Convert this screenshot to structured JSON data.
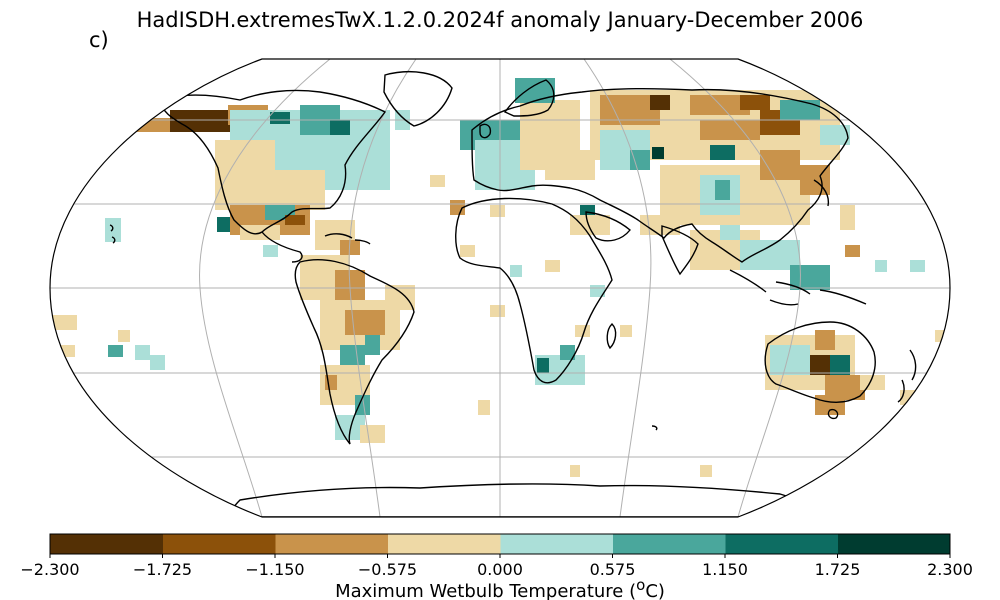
{
  "title": "HadISDH.extremesTwX.1.2.0.2024f anomaly January-December 2006",
  "panel_label": "c)",
  "colorbar": {
    "label": "Maximum Wetbulb Temperature (",
    "label_sup": "o",
    "label_unit": "C)",
    "ticks": [
      "−2.300",
      "−1.725",
      "−1.150",
      "−0.575",
      "0.000",
      "0.575",
      "1.150",
      "1.725",
      "2.300"
    ],
    "colors": [
      "#543005",
      "#8c510a",
      "#c9934b",
      "#eed9a6",
      "#abdfd8",
      "#4aa79c",
      "#0d6d62",
      "#003c30"
    ]
  },
  "map": {
    "projection": "robinson",
    "gridlines": true,
    "land_outline_color": "#000000",
    "gridline_color": "#b0b0b0"
  }
}
